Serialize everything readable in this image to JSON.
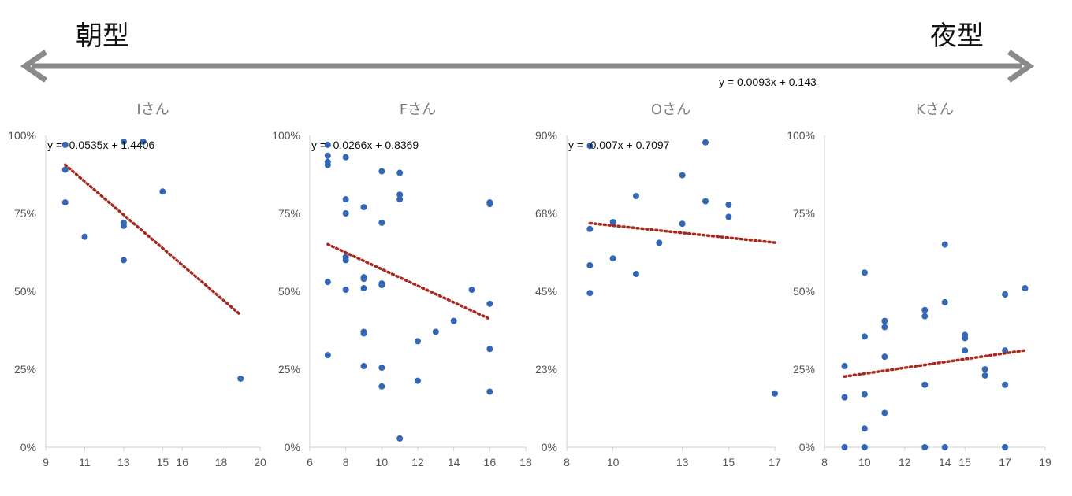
{
  "header": {
    "left_label": "朝型",
    "right_label": "夜型",
    "arrow_color": "#8a8a8a",
    "global_trend_equation": "y = 0.0093x + 0.143"
  },
  "colors": {
    "point": "#3467b5",
    "trend": "#a52a1f",
    "axis": "#d0d0d0"
  },
  "chart_data": [
    {
      "type": "scatter",
      "title": "Iさん",
      "trend_equation": "y = -0.0535x + 1.4406",
      "xlim": [
        9,
        20
      ],
      "ylim": [
        0,
        1
      ],
      "x_ticks": [
        9,
        11,
        13,
        15,
        16,
        18,
        20
      ],
      "x_tick_labels": [
        "9",
        "11",
        "13",
        "15",
        "16",
        "18",
        "20"
      ],
      "y_ticks": [
        0,
        0.25,
        0.5,
        0.75,
        1.0
      ],
      "y_tick_labels": [
        "0%",
        "25%",
        "50%",
        "75%",
        "100%"
      ],
      "points": [
        [
          10,
          0.97
        ],
        [
          10,
          0.89
        ],
        [
          10,
          0.785
        ],
        [
          11,
          0.675
        ],
        [
          13,
          0.98
        ],
        [
          13,
          0.72
        ],
        [
          13,
          0.71
        ],
        [
          13,
          0.6
        ],
        [
          14,
          0.98
        ],
        [
          15,
          0.82
        ],
        [
          19,
          0.22
        ]
      ],
      "trend": {
        "slope": -0.0535,
        "intercept": 1.4406,
        "x_range": [
          10,
          19
        ]
      }
    },
    {
      "type": "scatter",
      "title": "Fさん",
      "trend_equation": "y = -0.0266x + 0.8369",
      "xlim": [
        6,
        18
      ],
      "ylim": [
        0,
        1
      ],
      "x_ticks": [
        6,
        8,
        10,
        12,
        14,
        16,
        18
      ],
      "x_tick_labels": [
        "6",
        "8",
        "10",
        "12",
        "14",
        "16",
        "18"
      ],
      "y_ticks": [
        0,
        0.25,
        0.5,
        0.75,
        1.0
      ],
      "y_tick_labels": [
        "0%",
        "25%",
        "50%",
        "75%",
        "100%"
      ],
      "points": [
        [
          7,
          0.97
        ],
        [
          7,
          0.935
        ],
        [
          7,
          0.915
        ],
        [
          7,
          0.905
        ],
        [
          7,
          0.53
        ],
        [
          7,
          0.295
        ],
        [
          8,
          0.93
        ],
        [
          8,
          0.795
        ],
        [
          8,
          0.75
        ],
        [
          8,
          0.61
        ],
        [
          8,
          0.6
        ],
        [
          8,
          0.505
        ],
        [
          9,
          0.77
        ],
        [
          9,
          0.545
        ],
        [
          9,
          0.54
        ],
        [
          9,
          0.51
        ],
        [
          9,
          0.37
        ],
        [
          9,
          0.365
        ],
        [
          9,
          0.26
        ],
        [
          10,
          0.885
        ],
        [
          10,
          0.72
        ],
        [
          10,
          0.525
        ],
        [
          10,
          0.52
        ],
        [
          10,
          0.255
        ],
        [
          10,
          0.195
        ],
        [
          11,
          0.88
        ],
        [
          11,
          0.81
        ],
        [
          11,
          0.795
        ],
        [
          11,
          0.028
        ],
        [
          12,
          0.34
        ],
        [
          12,
          0.213
        ],
        [
          13,
          0.37
        ],
        [
          14,
          0.405
        ],
        [
          15,
          0.505
        ],
        [
          16,
          0.785
        ],
        [
          16,
          0.78
        ],
        [
          16,
          0.46
        ],
        [
          16,
          0.315
        ],
        [
          16,
          0.178
        ]
      ],
      "trend": {
        "slope": -0.0266,
        "intercept": 0.8369,
        "x_range": [
          7,
          16
        ]
      }
    },
    {
      "type": "scatter",
      "title": "Oさん",
      "trend_equation": "y = -0.007x + 0.7097",
      "xlim": [
        8,
        17
      ],
      "ylim": [
        0,
        0.9
      ],
      "x_ticks": [
        8,
        10,
        13,
        15,
        17
      ],
      "x_tick_labels": [
        "8",
        "10",
        "13",
        "15",
        "17"
      ],
      "y_ticks": [
        0,
        0.225,
        0.45,
        0.675,
        0.9
      ],
      "y_tick_labels": [
        "0%",
        "23%",
        "45%",
        "68%",
        "90%"
      ],
      "points": [
        [
          9,
          0.87
        ],
        [
          9,
          0.63
        ],
        [
          9,
          0.525
        ],
        [
          9,
          0.445
        ],
        [
          10,
          0.65
        ],
        [
          10,
          0.545
        ],
        [
          11,
          0.725
        ],
        [
          11,
          0.5
        ],
        [
          12,
          0.59
        ],
        [
          13,
          0.785
        ],
        [
          13,
          0.645
        ],
        [
          14,
          0.88
        ],
        [
          14,
          0.71
        ],
        [
          15,
          0.7
        ],
        [
          15,
          0.665
        ],
        [
          17,
          0.155
        ]
      ],
      "trend": {
        "slope": -0.007,
        "intercept": 0.7097,
        "x_range": [
          9,
          17
        ]
      }
    },
    {
      "type": "scatter",
      "title": "Kさん",
      "trend_equation": "",
      "xlim": [
        8,
        19
      ],
      "ylim": [
        0,
        1
      ],
      "x_ticks": [
        8,
        10,
        12,
        14,
        15,
        17,
        19
      ],
      "x_tick_labels": [
        "8",
        "10",
        "12",
        "14",
        "15",
        "17",
        "19"
      ],
      "y_ticks": [
        0,
        0.25,
        0.5,
        0.75,
        1.0
      ],
      "y_tick_labels": [
        "0%",
        "25%",
        "50%",
        "75%",
        "100%"
      ],
      "points": [
        [
          9,
          0.26
        ],
        [
          9,
          0.16
        ],
        [
          9,
          0.0
        ],
        [
          10,
          0.56
        ],
        [
          10,
          0.355
        ],
        [
          10,
          0.17
        ],
        [
          10,
          0.06
        ],
        [
          10,
          0.0
        ],
        [
          11,
          0.405
        ],
        [
          11,
          0.385
        ],
        [
          11,
          0.29
        ],
        [
          11,
          0.11
        ],
        [
          13,
          0.44
        ],
        [
          13,
          0.42
        ],
        [
          13,
          0.2
        ],
        [
          13,
          0.0
        ],
        [
          14,
          0.65
        ],
        [
          14,
          0.465
        ],
        [
          14,
          0.0
        ],
        [
          15,
          0.36
        ],
        [
          15,
          0.35
        ],
        [
          15,
          0.31
        ],
        [
          16,
          0.25
        ],
        [
          16,
          0.23
        ],
        [
          17,
          0.49
        ],
        [
          17,
          0.31
        ],
        [
          17,
          0.2
        ],
        [
          17,
          0.0
        ],
        [
          18,
          0.51
        ]
      ],
      "trend": {
        "slope": 0.0093,
        "intercept": 0.143,
        "x_range": [
          9,
          18
        ]
      }
    }
  ]
}
